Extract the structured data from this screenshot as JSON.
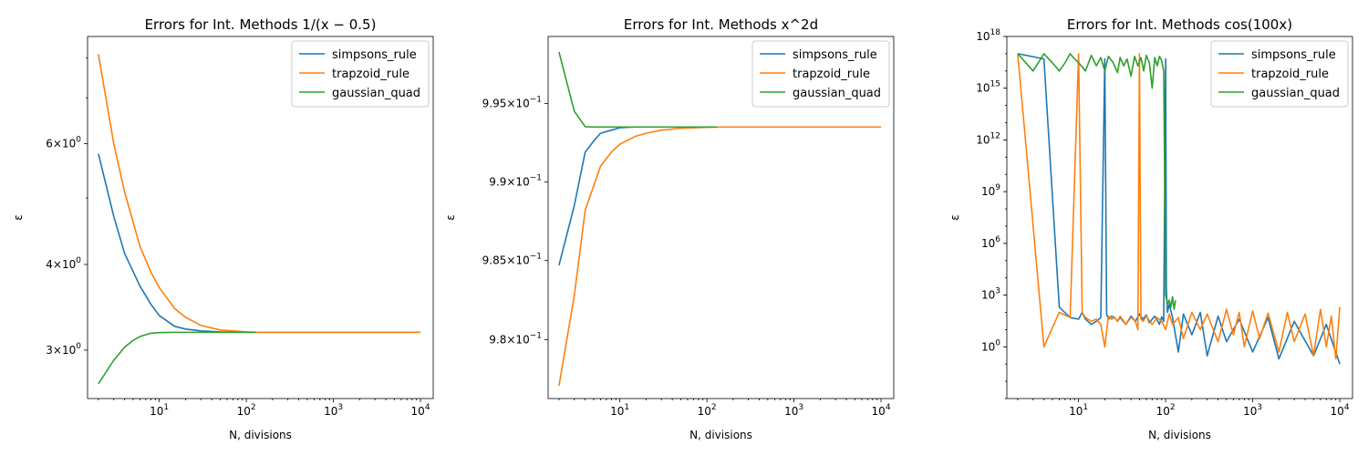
{
  "figure": {
    "background": "#ffffff"
  },
  "colors": {
    "simpsons_rule": "#1f77b4",
    "trapzoid_rule": "#ff7f0e",
    "gaussian_quad": "#2ca02c"
  },
  "chart_data": [
    {
      "type": "line",
      "title": "Errors for Int. Methods 1/(x − 0.5)",
      "xlabel": "N, divisions",
      "ylabel": "ε",
      "xscale": "log",
      "yscale": "log",
      "xlim": [
        1.5,
        14000
      ],
      "ylim": [
        2.55,
        8.6
      ],
      "xticks": [
        {
          "v": 10,
          "b": "10",
          "e": "1"
        },
        {
          "v": 100,
          "b": "10",
          "e": "2"
        },
        {
          "v": 1000,
          "b": "10",
          "e": "3"
        },
        {
          "v": 10000,
          "b": "10",
          "e": "4"
        }
      ],
      "yticks": [
        {
          "v": 3,
          "b": "3×10",
          "e": "0"
        },
        {
          "v": 4,
          "b": "4×10",
          "e": "0"
        },
        {
          "v": 6,
          "b": "6×10",
          "e": "0"
        }
      ],
      "legend": "top-right",
      "grid": false,
      "series": [
        {
          "name": "simpsons_rule",
          "color": "#1f77b4",
          "x": [
            2,
            3,
            4,
            6,
            8,
            10,
            15,
            20,
            30,
            50,
            100,
            150,
            10000
          ],
          "y": [
            5.8,
            4.7,
            4.15,
            3.72,
            3.5,
            3.37,
            3.25,
            3.22,
            3.2,
            3.19,
            3.185,
            3.185,
            3.185
          ]
        },
        {
          "name": "trapzoid_rule",
          "color": "#ff7f0e",
          "x": [
            2,
            3,
            4,
            6,
            8,
            10,
            15,
            20,
            30,
            50,
            100,
            150,
            10000
          ],
          "y": [
            8.1,
            6.0,
            5.1,
            4.25,
            3.9,
            3.7,
            3.45,
            3.35,
            3.26,
            3.21,
            3.19,
            3.185,
            3.185
          ]
        },
        {
          "name": "gaussian_quad",
          "color": "#2ca02c",
          "x": [
            2,
            3,
            4,
            5,
            6,
            8,
            10,
            15,
            20,
            50,
            130
          ],
          "y": [
            2.68,
            2.9,
            3.03,
            3.1,
            3.14,
            3.175,
            3.182,
            3.185,
            3.185,
            3.185,
            3.185
          ]
        }
      ]
    },
    {
      "type": "line",
      "title": "Errors for Int. Methods x^2d",
      "xlabel": "N, divisions",
      "ylabel": "ε",
      "xscale": "log",
      "yscale": "log",
      "xlim": [
        1.5,
        14000
      ],
      "ylim": [
        0.9763,
        0.9993
      ],
      "xticks": [
        {
          "v": 10,
          "b": "10",
          "e": "1"
        },
        {
          "v": 100,
          "b": "10",
          "e": "2"
        },
        {
          "v": 1000,
          "b": "10",
          "e": "3"
        },
        {
          "v": 10000,
          "b": "10",
          "e": "4"
        }
      ],
      "yticks": [
        {
          "v": 0.98,
          "b": "9.8×10",
          "e": "−1"
        },
        {
          "v": 0.985,
          "b": "9.85×10",
          "e": "−1"
        },
        {
          "v": 0.99,
          "b": "9.9×10",
          "e": "−1"
        },
        {
          "v": 0.995,
          "b": "9.95×10",
          "e": "−1"
        }
      ],
      "legend": "top-right",
      "grid": false,
      "series": [
        {
          "name": "simpsons_rule",
          "color": "#1f77b4",
          "x": [
            2,
            3,
            4,
            5,
            6,
            8,
            10,
            15,
            20,
            50,
            130
          ],
          "y": [
            0.9847,
            0.9885,
            0.9919,
            0.9926,
            0.9931,
            0.9933,
            0.99345,
            0.9935,
            0.9935,
            0.9935,
            0.9935
          ]
        },
        {
          "name": "trapzoid_rule",
          "color": "#ff7f0e",
          "x": [
            2,
            3,
            4,
            6,
            8,
            10,
            15,
            20,
            30,
            50,
            100,
            150,
            10000
          ],
          "y": [
            0.9771,
            0.9828,
            0.9882,
            0.991,
            0.9919,
            0.9924,
            0.9929,
            0.9931,
            0.9933,
            0.99342,
            0.99348,
            0.9935,
            0.9935
          ]
        },
        {
          "name": "gaussian_quad",
          "color": "#2ca02c",
          "x": [
            2,
            3,
            4,
            5,
            10,
            50,
            130
          ],
          "y": [
            0.9983,
            0.9945,
            0.99352,
            0.9935,
            0.9935,
            0.9935,
            0.9935
          ]
        }
      ]
    },
    {
      "type": "line",
      "title": "Errors for Int. Methods cos(100x)",
      "xlabel": "N, divisions",
      "ylabel": "ε",
      "xscale": "log",
      "yscale": "log",
      "xlim": [
        1.5,
        14000
      ],
      "ylim": [
        0.001,
        1e+18
      ],
      "xticks": [
        {
          "v": 10,
          "b": "10",
          "e": "1"
        },
        {
          "v": 100,
          "b": "10",
          "e": "2"
        },
        {
          "v": 1000,
          "b": "10",
          "e": "3"
        },
        {
          "v": 10000,
          "b": "10",
          "e": "4"
        }
      ],
      "yticks": [
        {
          "v": 1,
          "b": "10",
          "e": "0"
        },
        {
          "v": 1000.0,
          "b": "10",
          "e": "3"
        },
        {
          "v": 1000000.0,
          "b": "10",
          "e": "6"
        },
        {
          "v": 1000000000.0,
          "b": "10",
          "e": "9"
        },
        {
          "v": 1000000000000.0,
          "b": "10",
          "e": "12"
        },
        {
          "v": 1000000000000000.0,
          "b": "10",
          "e": "15"
        },
        {
          "v": 1e+18,
          "b": "10",
          "e": "18"
        }
      ],
      "legend": "top-right",
      "grid": false,
      "series": [
        {
          "name": "simpsons_rule",
          "color": "#1f77b4",
          "x": [
            2,
            4,
            6,
            8,
            10,
            11,
            12,
            14,
            16,
            18,
            20,
            21,
            22,
            24,
            26,
            28,
            30,
            35,
            40,
            45,
            50,
            55,
            60,
            65,
            70,
            75,
            80,
            85,
            90,
            95,
            100,
            102,
            105,
            110,
            120,
            140,
            160,
            200,
            250,
            300,
            400,
            500,
            700,
            1000,
            1500,
            2000,
            3000,
            5000,
            7000,
            10000
          ],
          "y": [
            1e+17,
            5e+16,
            200,
            50,
            40,
            100,
            40,
            20,
            30,
            50,
            5e+16,
            80,
            40,
            60,
            50,
            30,
            50,
            20,
            60,
            30,
            80,
            40,
            70,
            25,
            40,
            60,
            35,
            20,
            55,
            30,
            5e+16,
            2000,
            100,
            300,
            50,
            0.5,
            80,
            5,
            100,
            0.3,
            60,
            2,
            40,
            0.5,
            50,
            0.2,
            30,
            0.3,
            20,
            0.1
          ]
        },
        {
          "name": "trapzoid_rule",
          "color": "#ff7f0e",
          "x": [
            2,
            4,
            6,
            8,
            10,
            11,
            12,
            14,
            16,
            18,
            20,
            22,
            24,
            26,
            28,
            30,
            35,
            40,
            45,
            48,
            50,
            52,
            55,
            60,
            70,
            80,
            90,
            100,
            110,
            120,
            140,
            160,
            200,
            250,
            300,
            400,
            500,
            600,
            700,
            800,
            1000,
            1200,
            1500,
            2000,
            2500,
            3000,
            4000,
            5000,
            6000,
            7000,
            8000,
            9000,
            10000
          ],
          "y": [
            1e+17,
            1,
            100,
            50,
            1e+17,
            100,
            50,
            30,
            40,
            20,
            1,
            60,
            40,
            50,
            30,
            60,
            20,
            50,
            30,
            10,
            1e+17,
            40,
            30,
            60,
            20,
            50,
            30,
            10,
            80,
            20,
            50,
            3,
            100,
            10,
            80,
            2,
            150,
            5,
            100,
            1,
            120,
            3,
            90,
            0.5,
            100,
            2,
            80,
            0.3,
            150,
            1,
            60,
            0.2,
            200
          ]
        },
        {
          "name": "gaussian_quad",
          "color": "#2ca02c",
          "x": [
            2,
            3,
            4,
            5,
            6,
            7,
            8,
            9,
            10,
            12,
            14,
            16,
            18,
            20,
            22,
            25,
            28,
            30,
            33,
            36,
            40,
            44,
            48,
            52,
            56,
            60,
            65,
            70,
            75,
            80,
            85,
            90,
            95,
            100,
            105,
            110,
            115,
            120,
            125,
            130
          ],
          "y": [
            1e+17,
            1e+16,
            1e+17,
            3e+16,
            1e+16,
            3e+16,
            1e+17,
            5e+16,
            3e+16,
            1e+16,
            8e+16,
            2e+16,
            6e+16,
            1e+16,
            7e+16,
            3e+16,
            8000000000000000.0,
            6e+16,
            2e+16,
            5e+16,
            5000000000000000.0,
            7e+16,
            2e+16,
            6e+16,
            1e+16,
            8e+16,
            3e+16,
            1000000000000000.0,
            6e+16,
            2e+16,
            7e+16,
            4e+16,
            1e+16,
            1000,
            300,
            500,
            200,
            800,
            150,
            500
          ]
        }
      ]
    }
  ]
}
